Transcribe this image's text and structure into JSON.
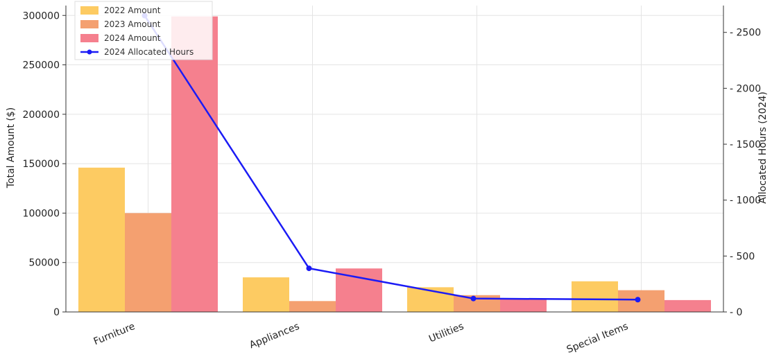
{
  "chart_data": {
    "type": "bar",
    "title": "",
    "categories": [
      "Furniture",
      "Appliances",
      "Utilities",
      "Special Items"
    ],
    "series": [
      {
        "name": "2022 Amount",
        "values": [
          146000,
          35000,
          25000,
          31000
        ],
        "color": "#FDCB62"
      },
      {
        "name": "2023 Amount",
        "values": [
          100000,
          11000,
          17000,
          22000
        ],
        "color": "#F4A070"
      },
      {
        "name": "2024 Amount",
        "values": [
          299000,
          44000,
          13000,
          12000
        ],
        "color": "#F5808E"
      }
    ],
    "line_series": {
      "name": "2024 Allocated Hours",
      "values": [
        2650,
        390,
        120,
        110
      ],
      "color": "#1B1BF5",
      "axis": "right"
    },
    "ylabel": "Total Amount ($)",
    "y2label": "Allocated Hours (2024)",
    "ylim": [
      0,
      310000
    ],
    "y2lim": [
      0,
      2740
    ],
    "yticks": [
      "0",
      "50000",
      "100000",
      "150000",
      "200000",
      "250000",
      "300000"
    ],
    "y2ticks": [
      "0",
      "500",
      "1000",
      "1500",
      "2000",
      "2500"
    ],
    "grid": true,
    "legend_position": "top-left"
  }
}
